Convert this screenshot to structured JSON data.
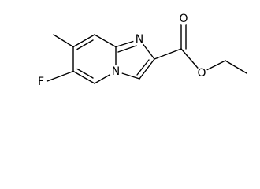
{
  "atoms": [
    {
      "label": "F"
    },
    {
      "label": "N"
    },
    {
      "label": "N"
    },
    {
      "label": "O"
    },
    {
      "label": "O"
    }
  ]
}
